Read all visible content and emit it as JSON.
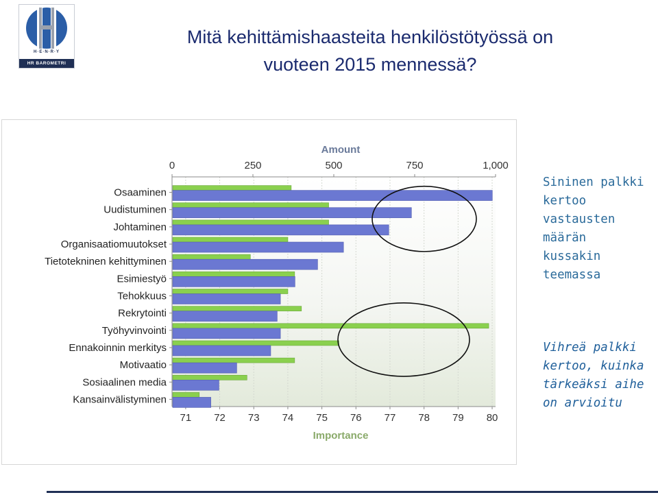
{
  "title": {
    "line1": "Mitä kehittämishaasteita henkilöstötyössä on",
    "line2": "vuoteen 2015 mennessä?"
  },
  "logo": {
    "brand": "H·E·N·R·Y",
    "sub": "HR BAROMETRI",
    "colors": {
      "blue": "#2b5ea7",
      "navy": "#1f2f55",
      "gray": "#9aa1ad"
    }
  },
  "notes": {
    "blue_lines": [
      "Sininen palkki",
      "kertoo",
      "vastausten",
      "määrän",
      "kussakin",
      "teemassa"
    ],
    "green_lines": [
      "Vihreä palkki",
      "kertoo, kuinka",
      "tärkeäksi aihe",
      "on arvioitu"
    ]
  },
  "chart_data": {
    "type": "bar",
    "orientation": "horizontal",
    "categories": [
      "Osaaminen",
      "Uudistuminen",
      "Johtaminen",
      "Organisaatiomuutokset",
      "Tietotekninen kehittyminen",
      "Esimiestyö",
      "Tehokkuus",
      "Rekrytointi",
      "Työhyvinvointi",
      "Ennakoinnin merkitys",
      "Motivaatio",
      "Sosiaalinen media",
      "Kansainvälistyminen"
    ],
    "series": [
      {
        "axis": "Amount",
        "color": "#6b78d2",
        "values": [
          990,
          740,
          670,
          530,
          450,
          380,
          335,
          325,
          335,
          305,
          200,
          145,
          120
        ]
      },
      {
        "axis": "Importance",
        "color": "#8ad04e",
        "values": [
          74.1,
          75.2,
          75.2,
          74.0,
          72.9,
          74.2,
          74.0,
          74.4,
          79.9,
          75.5,
          74.2,
          72.8,
          71.4
        ]
      }
    ],
    "top_axis": {
      "label": "Amount",
      "range": [
        0,
        1000
      ],
      "ticks": [
        0,
        250,
        500,
        750,
        1000
      ],
      "tick_labels": [
        "0",
        "250",
        "500",
        "750",
        "1,000"
      ]
    },
    "bottom_axis": {
      "label": "Importance",
      "range": [
        70.6,
        80.1
      ],
      "ticks": [
        71,
        72,
        73,
        74,
        75,
        76,
        77,
        78,
        79,
        80
      ],
      "tick_labels": [
        "71",
        "72",
        "73",
        "74",
        "75",
        "76",
        "77",
        "78",
        "79",
        "80"
      ]
    },
    "grid": true,
    "annotations": [
      {
        "shape": "ellipse",
        "around": [
          "Uudistuminen",
          "Johtaminen"
        ]
      },
      {
        "shape": "ellipse",
        "around": [
          "Työhyvinvointi",
          "Ennakoinnin merkitys"
        ]
      }
    ]
  }
}
